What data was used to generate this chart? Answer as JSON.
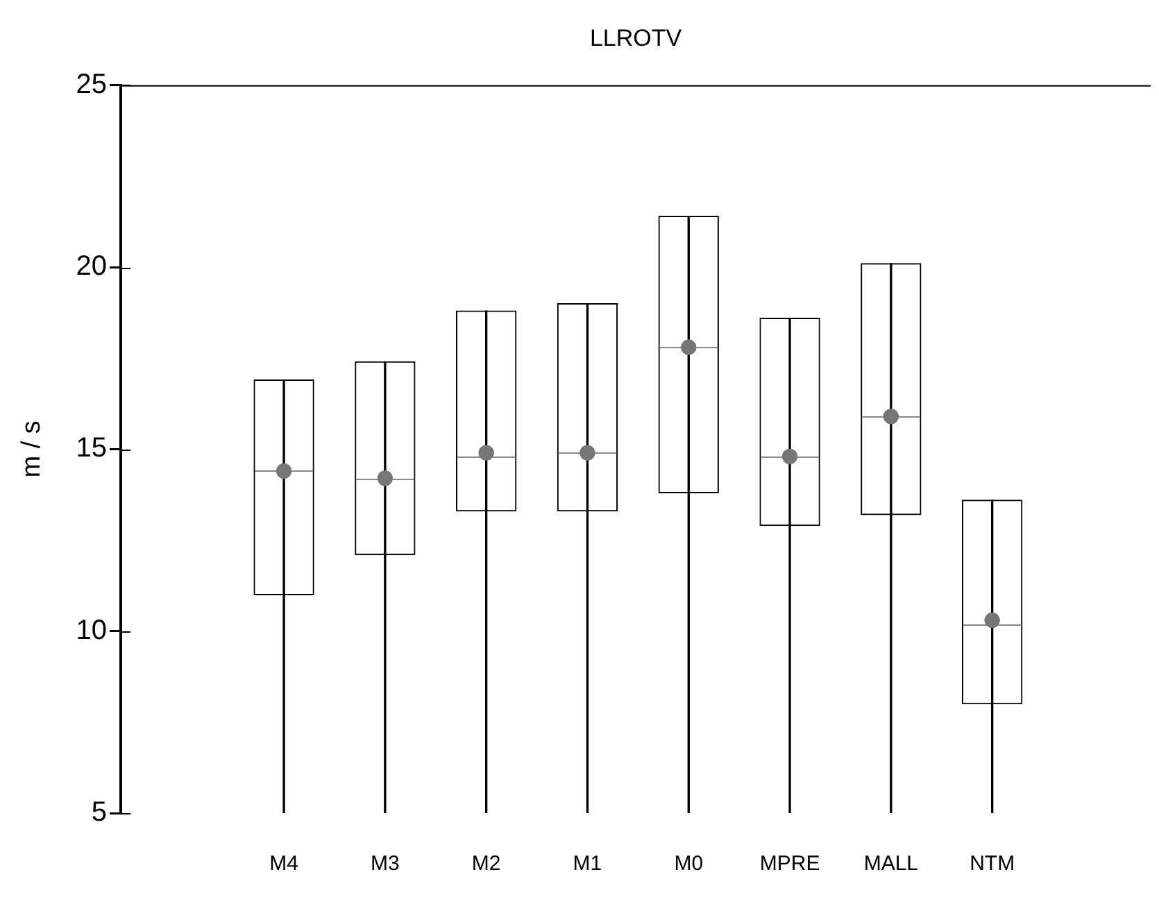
{
  "chart_data": {
    "type": "box",
    "title": "LLROTV",
    "ylabel": "m / s",
    "categories": [
      "M4",
      "M3",
      "M2",
      "M1",
      "M0",
      "MPRE",
      "MALL",
      "NTM"
    ],
    "boxes": [
      {
        "low": 5,
        "q1": 11.0,
        "median": 14.4,
        "q3": 16.9,
        "high": 16.9,
        "mean": 14.4
      },
      {
        "low": 5,
        "q1": 12.1,
        "median": 14.2,
        "q3": 17.4,
        "high": 17.4,
        "mean": 14.2
      },
      {
        "low": 5,
        "q1": 13.3,
        "median": 14.8,
        "q3": 18.8,
        "high": 18.8,
        "mean": 14.9
      },
      {
        "low": 5,
        "q1": 13.3,
        "median": 14.9,
        "q3": 19.0,
        "high": 19.0,
        "mean": 14.9
      },
      {
        "low": 5,
        "q1": 13.8,
        "median": 17.8,
        "q3": 21.4,
        "high": 21.4,
        "mean": 17.8
      },
      {
        "low": 5,
        "q1": 12.9,
        "median": 14.8,
        "q3": 18.6,
        "high": 18.6,
        "mean": 14.8
      },
      {
        "low": 5,
        "q1": 13.2,
        "median": 15.9,
        "q3": 20.1,
        "high": 20.1,
        "mean": 15.9
      },
      {
        "low": 5,
        "q1": 8.0,
        "median": 10.2,
        "q3": 13.6,
        "high": 13.6,
        "mean": 10.3
      }
    ],
    "ylim": [
      5,
      25
    ],
    "yticks": [
      5,
      10,
      15,
      20,
      25
    ]
  }
}
